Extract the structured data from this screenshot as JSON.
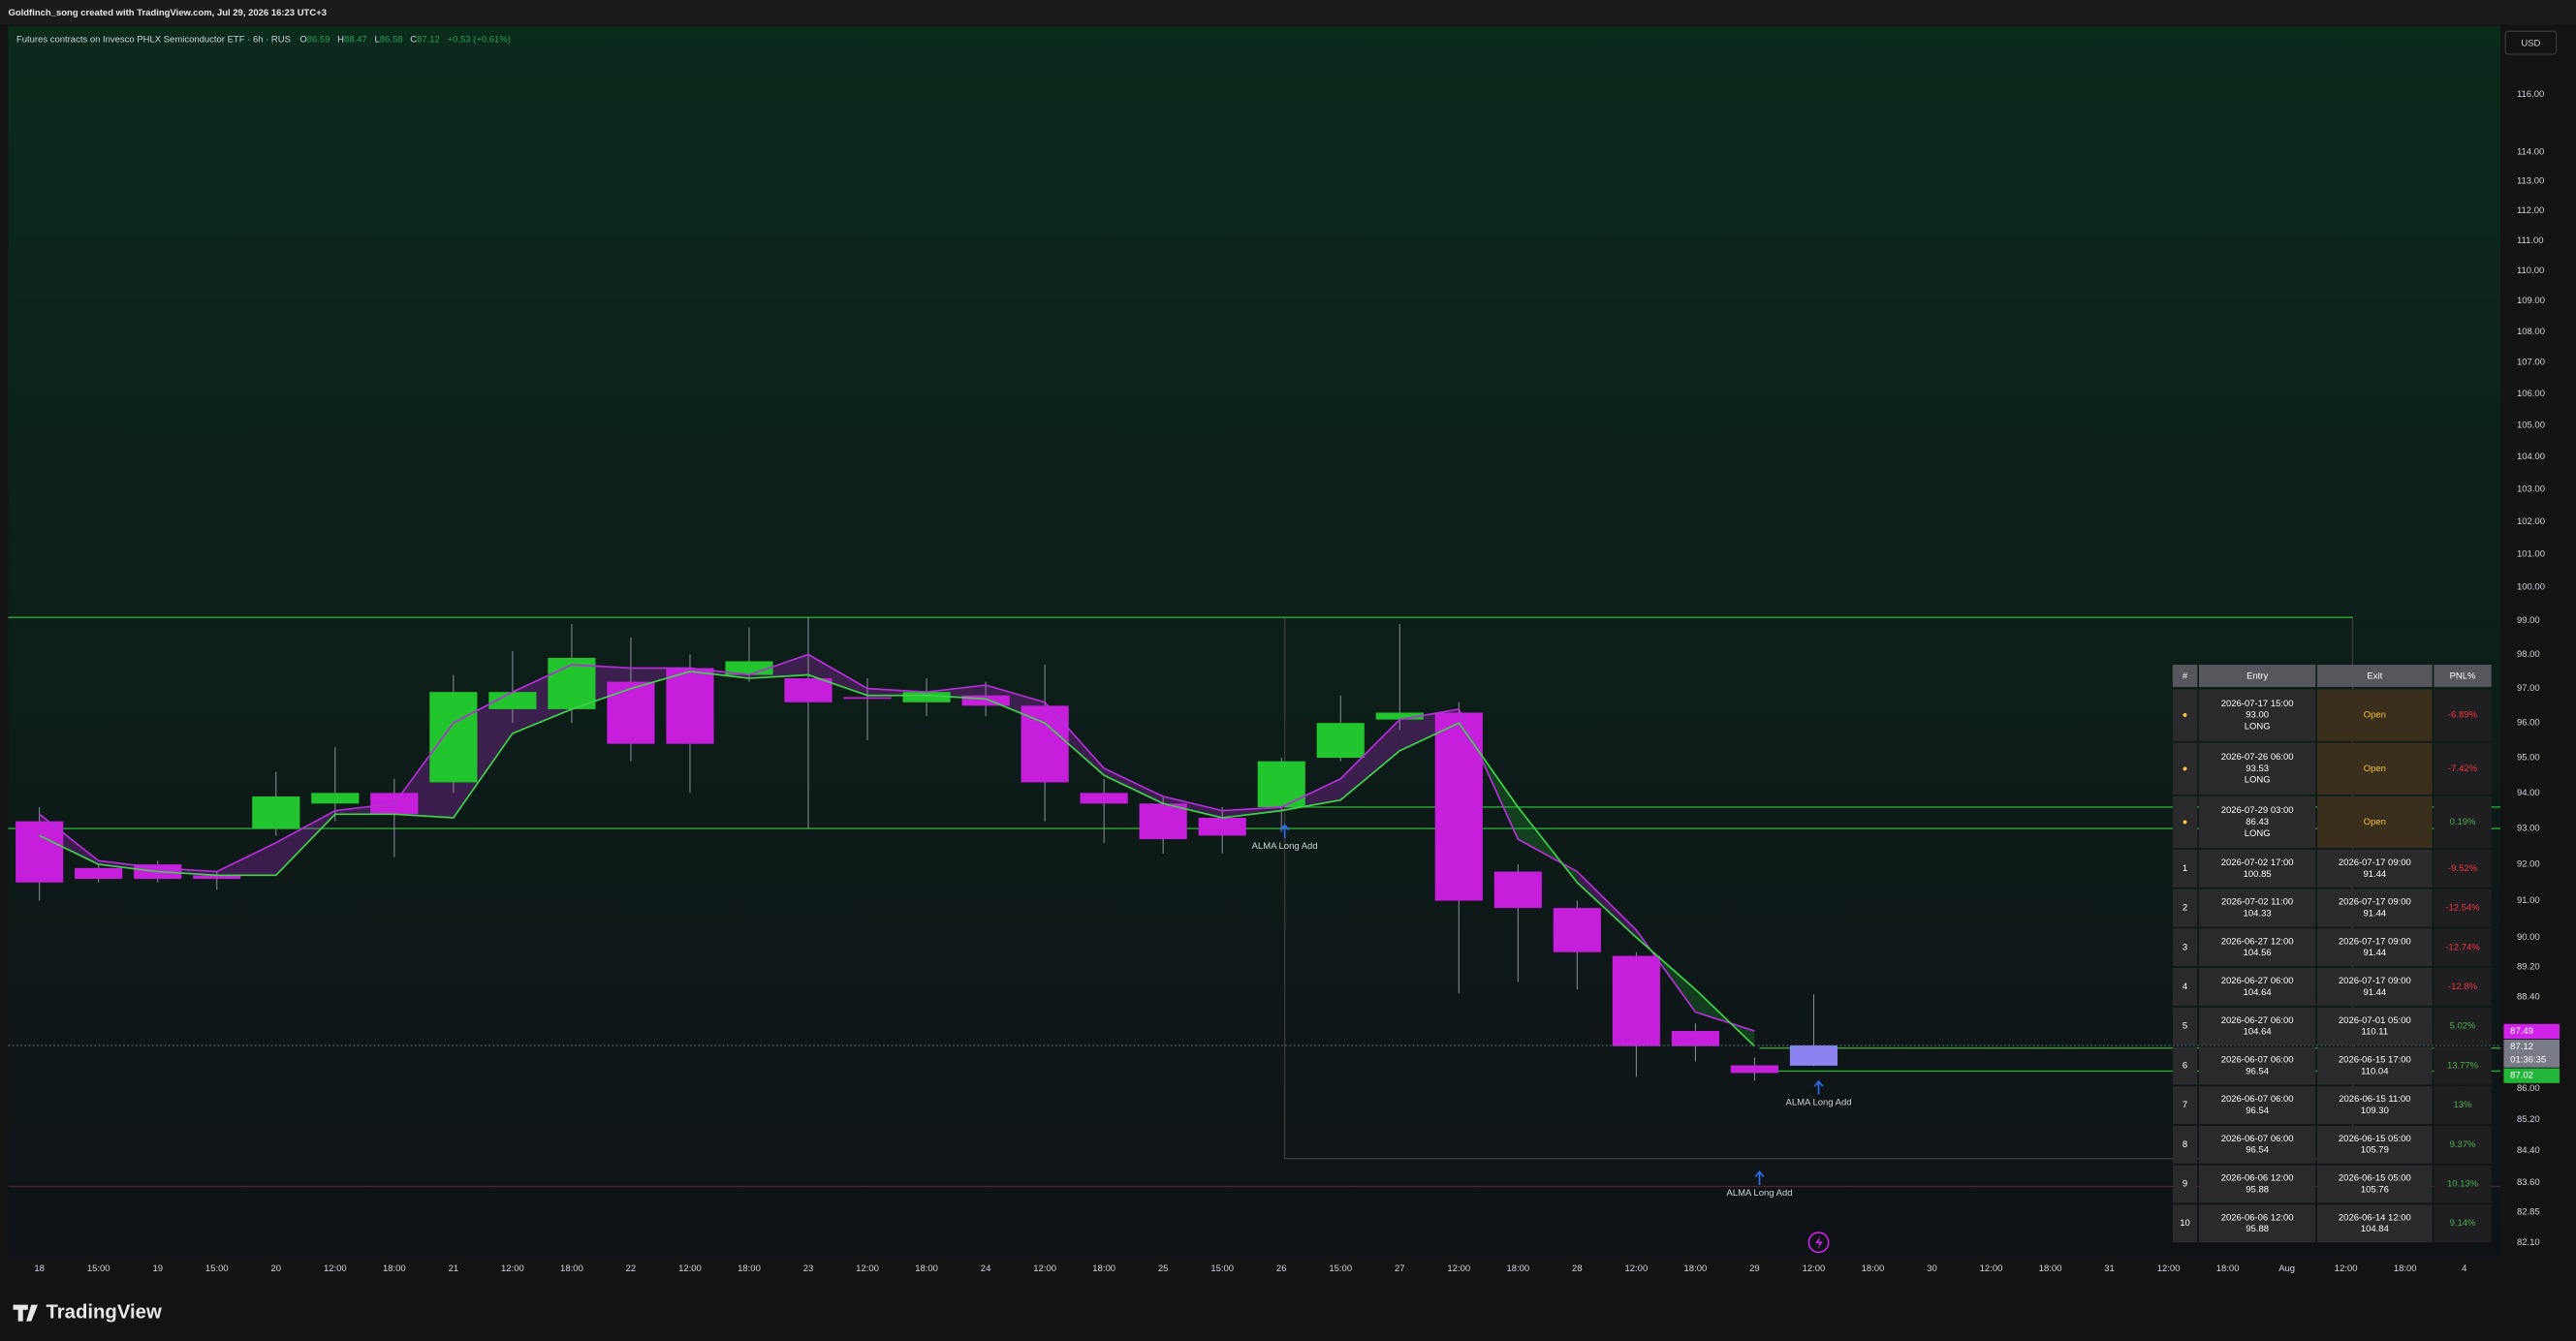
{
  "header": {
    "credit": "Goldfinch_song created with TradingView.com, Jul 29, 2026 16:23 UTC+3",
    "currency": "USD",
    "brand": "TradingView"
  },
  "chart_data": {
    "type": "candlestick",
    "title": "Futures contracts on Invesco PHLX Semiconductor ETF · 6h · RUS",
    "ohlc_labels": [
      "O",
      "H",
      "L",
      "C"
    ],
    "change": "+0.53 (+0.61%)",
    "categories": [
      "18",
      "15:00",
      "19",
      "15:00",
      "20",
      "12:00",
      "18:00",
      "21",
      "12:00",
      "18:00",
      "22",
      "12:00",
      "18:00",
      "23",
      "12:00",
      "18:00",
      "24",
      "12:00",
      "18:00",
      "25",
      "15:00",
      "26",
      "15:00",
      "27",
      "12:00",
      "18:00",
      "28",
      "12:00",
      "18:00",
      "29",
      "12:00",
      "18:00",
      "30",
      "12:00",
      "18:00",
      "31",
      "12:00",
      "18:00",
      "Aug",
      "12:00",
      "18:00",
      "4"
    ],
    "candles": [
      {
        "open": 93.2,
        "high": 93.6,
        "low": 91.0,
        "close": 91.5
      },
      {
        "open": 91.9,
        "high": 92.0,
        "low": 91.5,
        "close": 91.6
      },
      {
        "open": 92.0,
        "high": 92.1,
        "low": 91.5,
        "close": 91.6
      },
      {
        "open": 91.7,
        "high": 91.8,
        "low": 91.3,
        "close": 91.6
      },
      {
        "open": 93.0,
        "high": 94.6,
        "low": 92.8,
        "close": 93.9
      },
      {
        "open": 93.7,
        "high": 95.3,
        "low": 93.2,
        "close": 94.0
      },
      {
        "open": 94.0,
        "high": 94.4,
        "low": 92.2,
        "close": 93.4
      },
      {
        "open": 94.3,
        "high": 97.4,
        "low": 94.0,
        "close": 96.9
      },
      {
        "open": 96.4,
        "high": 98.1,
        "low": 96.0,
        "close": 96.9
      },
      {
        "open": 96.4,
        "high": 98.9,
        "low": 96.0,
        "close": 97.9
      },
      {
        "open": 97.2,
        "high": 98.5,
        "low": 94.9,
        "close": 95.4
      },
      {
        "open": 97.6,
        "high": 98.0,
        "low": 94.0,
        "close": 95.4
      },
      {
        "open": 97.4,
        "high": 98.8,
        "low": 97.2,
        "close": 97.8
      },
      {
        "open": 97.3,
        "high": 99.1,
        "low": 93.0,
        "close": 96.6
      },
      {
        "open": 96.75,
        "high": 97.3,
        "low": 95.5,
        "close": 96.7
      },
      {
        "open": 96.6,
        "high": 97.3,
        "low": 96.2,
        "close": 96.9
      },
      {
        "open": 96.8,
        "high": 97.2,
        "low": 96.2,
        "close": 96.5
      },
      {
        "open": 96.5,
        "high": 97.7,
        "low": 93.2,
        "close": 94.3
      },
      {
        "open": 94.0,
        "high": 94.4,
        "low": 92.6,
        "close": 93.7
      },
      {
        "open": 93.7,
        "high": 93.9,
        "low": 92.3,
        "close": 92.7
      },
      {
        "open": 93.3,
        "high": 93.6,
        "low": 92.3,
        "close": 92.8
      },
      {
        "open": 93.6,
        "high": 95.0,
        "low": 92.9,
        "close": 94.9
      },
      {
        "open": 95.0,
        "high": 96.8,
        "low": 94.9,
        "close": 96.0
      },
      {
        "open": 96.1,
        "high": 98.9,
        "low": 95.8,
        "close": 96.3
      },
      {
        "open": 96.3,
        "high": 96.6,
        "low": 88.5,
        "close": 91.0
      },
      {
        "open": 91.8,
        "high": 92.0,
        "low": 88.8,
        "close": 90.8
      },
      {
        "open": 90.8,
        "high": 91.0,
        "low": 88.6,
        "close": 89.6
      },
      {
        "open": 89.5,
        "high": 89.6,
        "low": 86.3,
        "close": 87.1
      },
      {
        "open": 87.5,
        "high": 87.7,
        "low": 86.7,
        "close": 87.1
      },
      {
        "open": 86.6,
        "high": 86.8,
        "low": 86.2,
        "close": 86.4
      },
      {
        "open": 86.59,
        "high": 88.47,
        "low": 86.58,
        "close": 87.12
      }
    ],
    "up_color": "#22c52e",
    "down_color": "#c51fdc",
    "last_color": "#8b84f0",
    "lines": [
      {
        "color": "#b32fd6",
        "values": [
          93.4,
          92.1,
          91.9,
          91.8,
          92.6,
          93.5,
          93.7,
          96.0,
          96.9,
          97.7,
          97.6,
          97.6,
          97.4,
          98.0,
          97.0,
          96.9,
          97.1,
          96.6,
          94.7,
          93.9,
          93.5,
          93.6,
          94.4,
          96.1,
          96.4,
          92.7,
          91.8,
          90.2,
          88.0,
          87.5
        ]
      },
      {
        "color": "#3fd24a",
        "values": [
          92.8,
          92.0,
          91.8,
          91.7,
          91.7,
          93.4,
          93.4,
          93.3,
          95.7,
          96.4,
          97.0,
          97.5,
          97.3,
          97.4,
          96.8,
          96.8,
          96.7,
          96.0,
          94.5,
          93.7,
          93.3,
          93.5,
          93.8,
          95.2,
          96.0,
          93.6,
          91.5,
          90.0,
          88.6,
          87.1
        ]
      }
    ],
    "levels": [
      {
        "value": 99.1,
        "color": "#2fa83a"
      },
      {
        "value": 93.6,
        "color": "#2fa83a"
      },
      {
        "value": 93.0,
        "color": "#2fa83a"
      },
      {
        "value": 87.05,
        "color": "#2fa83a"
      },
      {
        "value": 86.45,
        "color": "#2fa83a"
      },
      {
        "value": 83.5,
        "color": "#4a2430"
      }
    ],
    "annotations": [
      "ALMA Long Add",
      "ALMA Long Add",
      "ALMA Long Add"
    ],
    "price_labels": [
      {
        "value": 87.49,
        "color": "#d022e8"
      },
      {
        "value": 87.12,
        "color": "#787b86",
        "countdown": "01:36:35"
      },
      {
        "value": 87.02,
        "color": "#22b53a"
      }
    ],
    "log_scale": true,
    "ylim": [
      81.74,
      118.4
    ],
    "yticks": [
      {
        "value": 116,
        "label": "116.00"
      },
      {
        "value": 114,
        "label": "114.00"
      },
      {
        "value": 113,
        "label": "113.00"
      },
      {
        "value": 112,
        "label": "112.00"
      },
      {
        "value": 111,
        "label": "111.00"
      },
      {
        "value": 110,
        "label": "110.00"
      },
      {
        "value": 109,
        "label": "109.00"
      },
      {
        "value": 108,
        "label": "108.00"
      },
      {
        "value": 107,
        "label": "107.00"
      },
      {
        "value": 106,
        "label": "106.00"
      },
      {
        "value": 105,
        "label": "105.00"
      },
      {
        "value": 104,
        "label": "104.00"
      },
      {
        "value": 103,
        "label": "103.00"
      },
      {
        "value": 102,
        "label": "102.00"
      },
      {
        "value": 101,
        "label": "101.00"
      },
      {
        "value": 100,
        "label": "100.00"
      },
      {
        "value": 99,
        "label": "99.00"
      },
      {
        "value": 98,
        "label": "98.00"
      },
      {
        "value": 97,
        "label": "97.00"
      },
      {
        "value": 96,
        "label": "96.00"
      },
      {
        "value": 95,
        "label": "95.00"
      },
      {
        "value": 94,
        "label": "94.00"
      },
      {
        "value": 93,
        "label": "93.00"
      },
      {
        "value": 92,
        "label": "92.00"
      },
      {
        "value": 91,
        "label": "91.00"
      },
      {
        "value": 90,
        "label": "90.00"
      },
      {
        "value": 89.2,
        "label": "89.20"
      },
      {
        "value": 88.4,
        "label": "88.40"
      },
      {
        "value": 86,
        "label": "86.00"
      },
      {
        "value": 85.2,
        "label": "85.20"
      },
      {
        "value": 84.4,
        "label": "84.40"
      },
      {
        "value": 83.6,
        "label": "83.60"
      },
      82.85,
      {
        "value": 82.1,
        "label": "82.10"
      }
    ],
    "grid": false
  },
  "table": {
    "header": [
      "#",
      "Entry",
      "Exit",
      "PNL%"
    ],
    "rows": [
      {
        "id": "●",
        "entry": [
          "2026-07-17 15:00",
          "93.00",
          "LONG"
        ],
        "exit": [
          "Open"
        ],
        "pnl": "-6.89%"
      },
      {
        "id": "●",
        "entry": [
          "2026-07-26 06:00",
          "93.53",
          "LONG"
        ],
        "exit": [
          "Open"
        ],
        "pnl": "-7.42%"
      },
      {
        "id": "●",
        "entry": [
          "2026-07-29 03:00",
          "86.43",
          "LONG"
        ],
        "exit": [
          "Open"
        ],
        "pnl": "0.19%"
      },
      {
        "id": "1",
        "entry": [
          "2026-07-02 17:00",
          "100.85"
        ],
        "exit": [
          "2026-07-17 09:00",
          "91.44"
        ],
        "pnl": "-9.52%"
      },
      {
        "id": "2",
        "entry": [
          "2026-07-02 11:00",
          "104.33"
        ],
        "exit": [
          "2026-07-17 09:00",
          "91.44"
        ],
        "pnl": "-12.54%"
      },
      {
        "id": "3",
        "entry": [
          "2026-06-27 12:00",
          "104.56"
        ],
        "exit": [
          "2026-07-17 09:00",
          "91.44"
        ],
        "pnl": "-12.74%"
      },
      {
        "id": "4",
        "entry": [
          "2026-06-27 06:00",
          "104.64"
        ],
        "exit": [
          "2026-07-17 09:00",
          "91.44"
        ],
        "pnl": "-12.8%"
      },
      {
        "id": "5",
        "entry": [
          "2026-06-27 06:00",
          "104.64"
        ],
        "exit": [
          "2026-07-01 05:00",
          "110.11"
        ],
        "pnl": "5.02%"
      },
      {
        "id": "6",
        "entry": [
          "2026-06-07 06:00",
          "96.54"
        ],
        "exit": [
          "2026-06-15 17:00",
          "110.04"
        ],
        "pnl": "13.77%"
      },
      {
        "id": "7",
        "entry": [
          "2026-06-07 06:00",
          "96.54"
        ],
        "exit": [
          "2026-06-15 11:00",
          "109.30"
        ],
        "pnl": "13%"
      },
      {
        "id": "8",
        "entry": [
          "2026-06-07 06:00",
          "96.54"
        ],
        "exit": [
          "2026-06-15 05:00",
          "105.79"
        ],
        "pnl": "9.37%"
      },
      {
        "id": "9",
        "entry": [
          "2026-06-06 12:00",
          "95.88"
        ],
        "exit": [
          "2026-06-15 05:00",
          "105.76"
        ],
        "pnl": "10.13%"
      },
      {
        "id": "10",
        "entry": [
          "2026-06-06 12:00",
          "95.88"
        ],
        "exit": [
          "2026-06-14 12:00",
          "104.84"
        ],
        "pnl": "9.14%"
      }
    ]
  }
}
